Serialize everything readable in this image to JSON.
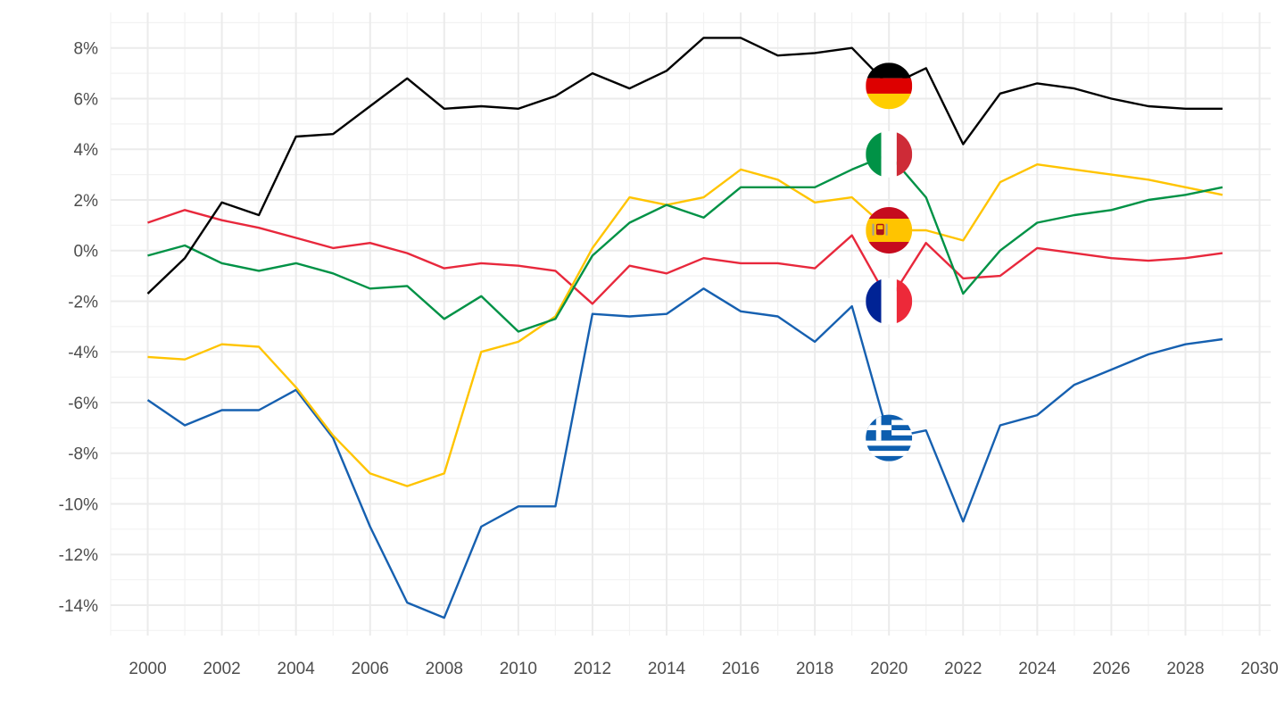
{
  "chart_data": {
    "type": "line",
    "title": "",
    "xlabel": "",
    "ylabel": "",
    "xlim": [
      1999,
      2030.3
    ],
    "ylim": [
      -15.2,
      9.4
    ],
    "x_ticks": [
      2000,
      2002,
      2004,
      2006,
      2008,
      2010,
      2012,
      2014,
      2016,
      2018,
      2020,
      2022,
      2024,
      2026,
      2028,
      2030
    ],
    "x_tick_labels": [
      "2000",
      "2002",
      "2004",
      "2006",
      "2008",
      "2010",
      "2012",
      "2014",
      "2016",
      "2018",
      "2020",
      "2022",
      "2024",
      "2026",
      "2028",
      "2030"
    ],
    "y_ticks": [
      8,
      6,
      4,
      2,
      0,
      -2,
      -4,
      -6,
      -8,
      -10,
      -12,
      -14
    ],
    "y_tick_labels": [
      "8%",
      "6%",
      "4%",
      "2%",
      "0%",
      "-2%",
      "-4%",
      "-6%",
      "-8%",
      "-10%",
      "-12%",
      "-14%"
    ],
    "grid": true,
    "x": [
      2000,
      2001,
      2002,
      2003,
      2004,
      2005,
      2006,
      2007,
      2008,
      2009,
      2010,
      2011,
      2012,
      2013,
      2014,
      2015,
      2016,
      2017,
      2018,
      2019,
      2020,
      2021,
      2022,
      2023,
      2024,
      2025,
      2026,
      2027,
      2028,
      2029
    ],
    "series": [
      {
        "name": "Germany",
        "flag": "germany",
        "color": "#000000",
        "flag_x": 2020,
        "flag_y": 6.5,
        "values": [
          -1.7,
          -0.3,
          1.9,
          1.4,
          4.5,
          4.6,
          5.7,
          6.8,
          5.6,
          5.7,
          5.6,
          6.1,
          7.0,
          6.4,
          7.1,
          8.4,
          8.4,
          7.7,
          7.8,
          8.0,
          6.5,
          7.2,
          4.2,
          6.2,
          6.6,
          6.4,
          6.0,
          5.7,
          5.6,
          5.6
        ]
      },
      {
        "name": "Italy",
        "flag": "italy",
        "color": "#009246",
        "flag_x": 2020,
        "flag_y": 3.8,
        "values": [
          -0.2,
          0.2,
          -0.5,
          -0.8,
          -0.5,
          -0.9,
          -1.5,
          -1.4,
          -2.7,
          -1.8,
          -3.2,
          -2.7,
          -0.2,
          1.1,
          1.8,
          1.3,
          2.5,
          2.5,
          2.5,
          3.2,
          3.8,
          2.1,
          -1.7,
          0.0,
          1.1,
          1.4,
          1.6,
          2.0,
          2.2,
          2.5
        ]
      },
      {
        "name": "Spain",
        "flag": "spain",
        "color": "#FFC400",
        "flag_x": 2020,
        "flag_y": 0.8,
        "values": [
          -4.2,
          -4.3,
          -3.7,
          -3.8,
          -5.4,
          -7.3,
          -8.8,
          -9.3,
          -8.8,
          -4.0,
          -3.6,
          -2.6,
          0.1,
          2.1,
          1.8,
          2.1,
          3.2,
          2.8,
          1.9,
          2.1,
          0.8,
          0.8,
          0.4,
          2.7,
          3.4,
          3.2,
          3.0,
          2.8,
          2.5,
          2.2
        ]
      },
      {
        "name": "France",
        "flag": "france",
        "color": "#E8283C",
        "flag_x": 2020,
        "flag_y": -2.0,
        "values": [
          1.1,
          1.6,
          1.2,
          0.9,
          0.5,
          0.1,
          0.3,
          -0.1,
          -0.7,
          -0.5,
          -0.6,
          -0.8,
          -2.1,
          -0.6,
          -0.9,
          -0.3,
          -0.5,
          -0.5,
          -0.7,
          0.6,
          -2.0,
          0.3,
          -1.1,
          -1.0,
          0.1,
          -0.1,
          -0.3,
          -0.4,
          -0.3,
          -0.1
        ]
      },
      {
        "name": "Greece",
        "flag": "greece",
        "color": "#1660B0",
        "flag_x": 2020,
        "flag_y": -7.4,
        "values": [
          -5.9,
          -6.9,
          -6.3,
          -6.3,
          -5.5,
          -7.4,
          -10.9,
          -13.9,
          -14.5,
          -10.9,
          -10.1,
          -10.1,
          -2.5,
          -2.6,
          -2.5,
          -1.5,
          -2.4,
          -2.6,
          -3.6,
          -2.2,
          -7.4,
          -7.1,
          -10.7,
          -6.9,
          -6.5,
          -5.3,
          -4.7,
          -4.1,
          -3.7,
          -3.5
        ]
      }
    ]
  }
}
